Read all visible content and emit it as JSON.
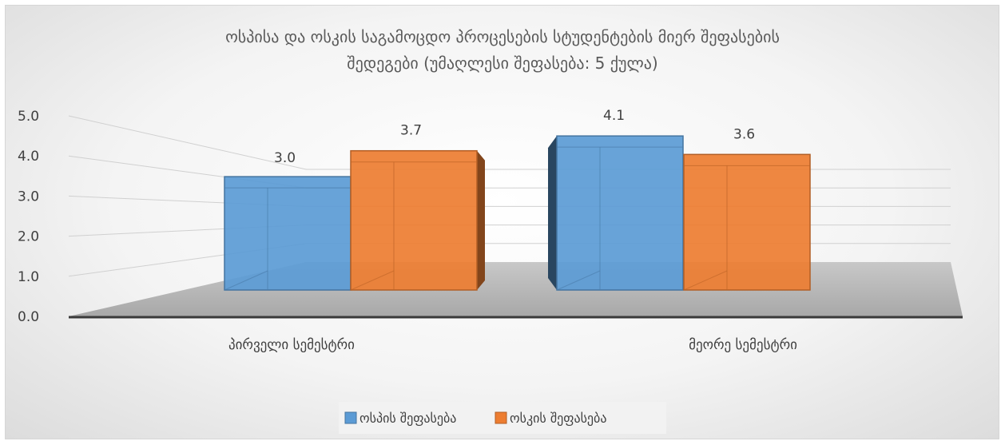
{
  "chart_data": {
    "type": "bar",
    "title_lines": [
      "ოსპისა და ოსკის საგამოცდო პროცესების სტუდენტების მიერ შეფასების",
      "შედეგები (უმაღლესი შეფასება: 5 ქულა)"
    ],
    "categories": [
      "პირველი სემესტრი",
      "მეორე სემესტრი"
    ],
    "series": [
      {
        "name": "ოსპის შეფასება",
        "values": [
          3.0,
          4.1
        ],
        "color": "#5b9bd5"
      },
      {
        "name": "ოსკის შეფასება",
        "values": [
          3.7,
          3.6
        ],
        "color": "#ed7d31"
      }
    ],
    "data_labels": [
      [
        "3.0",
        "4.1"
      ],
      [
        "3.7",
        "3.6"
      ]
    ],
    "y_ticks": [
      "0.0",
      "1.0",
      "2.0",
      "3.0",
      "4.0",
      "5.0"
    ],
    "ylim": [
      0,
      5
    ],
    "grid": true,
    "legend_position": "bottom",
    "style": "3d-clustered-column"
  }
}
